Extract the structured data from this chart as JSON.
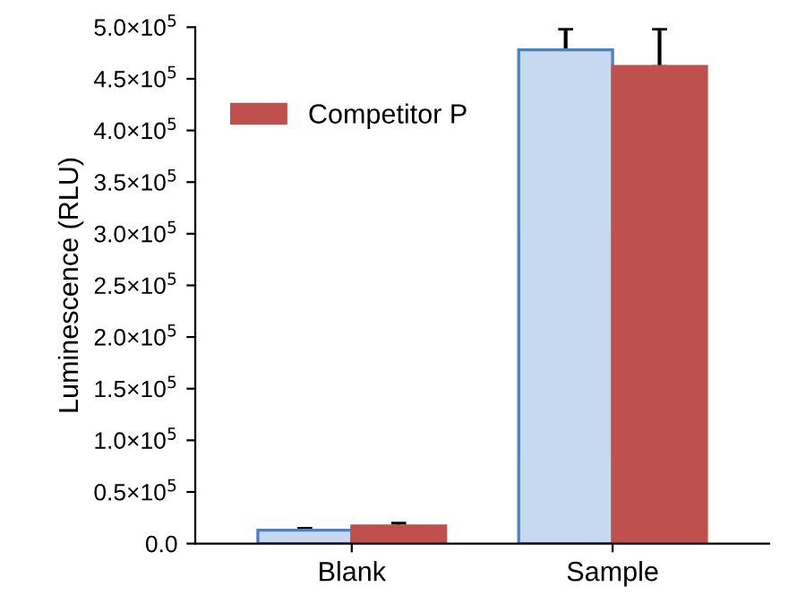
{
  "chart_data": {
    "type": "bar",
    "ylabel": "Luminescence (RLU)",
    "categories": [
      "Blank",
      "Sample"
    ],
    "series": [
      {
        "color": "#c6d9f1",
        "values": [
          13000,
          478000
        ],
        "errors": [
          [
            13000,
            15000
          ],
          [
            478000,
            498000
          ]
        ]
      },
      {
        "name": "Competitor P",
        "color": "#c0504d",
        "values": [
          17000,
          462000
        ],
        "errors": [
          [
            17000,
            20000
          ],
          [
            462000,
            498000
          ]
        ]
      }
    ],
    "ylim": [
      0,
      500000
    ],
    "yticks": [
      {
        "value": 0,
        "label": "0.0"
      },
      {
        "value": 50000,
        "label": "0.5×10$^{5}$"
      },
      {
        "value": 100000,
        "label": "1.0×10$^{5}$"
      },
      {
        "value": 150000,
        "label": "1.5×10$^{5}$"
      },
      {
        "value": 200000,
        "label": "2.0×10$^{5}$"
      },
      {
        "value": 250000,
        "label": "2.5×10$^{5}$"
      },
      {
        "value": 300000,
        "label": "3.0×10$^{5}$"
      },
      {
        "value": 350000,
        "label": "3.5×10$^{5}$"
      },
      {
        "value": 400000,
        "label": "4.0×10$^{5}$"
      },
      {
        "value": 450000,
        "label": "4.5×10$^{5}$"
      },
      {
        "value": 500000,
        "label": "5.0×10$^{5}$"
      }
    ],
    "legend": "top left",
    "grid": false
  }
}
